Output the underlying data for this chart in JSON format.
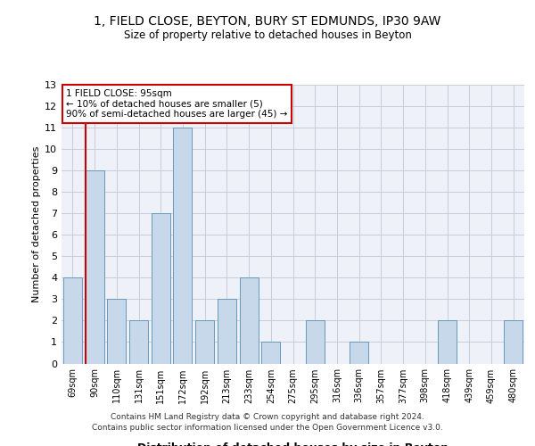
{
  "title1": "1, FIELD CLOSE, BEYTON, BURY ST EDMUNDS, IP30 9AW",
  "title2": "Size of property relative to detached houses in Beyton",
  "xlabel": "Distribution of detached houses by size in Beyton",
  "ylabel": "Number of detached properties",
  "categories": [
    "69sqm",
    "90sqm",
    "110sqm",
    "131sqm",
    "151sqm",
    "172sqm",
    "192sqm",
    "213sqm",
    "233sqm",
    "254sqm",
    "275sqm",
    "295sqm",
    "316sqm",
    "336sqm",
    "357sqm",
    "377sqm",
    "398sqm",
    "418sqm",
    "439sqm",
    "459sqm",
    "480sqm"
  ],
  "values": [
    4,
    9,
    3,
    2,
    7,
    11,
    2,
    3,
    4,
    1,
    0,
    2,
    0,
    1,
    0,
    0,
    0,
    2,
    0,
    0,
    2
  ],
  "bar_color": "#c8d8eb",
  "bar_edgecolor": "#6699bb",
  "vline_index": 1,
  "vline_color": "#cc0000",
  "annotation_line1": "1 FIELD CLOSE: 95sqm",
  "annotation_line2": "← 10% of detached houses are smaller (5)",
  "annotation_line3": "90% of semi-detached houses are larger (45) →",
  "annotation_box_edgecolor": "#cc0000",
  "ylim": [
    0,
    13
  ],
  "yticks": [
    0,
    1,
    2,
    3,
    4,
    5,
    6,
    7,
    8,
    9,
    10,
    11,
    12,
    13
  ],
  "footer_line1": "Contains HM Land Registry data © Crown copyright and database right 2024.",
  "footer_line2": "Contains public sector information licensed under the Open Government Licence v3.0.",
  "bg_color": "#eef2f8",
  "grid_color": "#c8ccd8"
}
